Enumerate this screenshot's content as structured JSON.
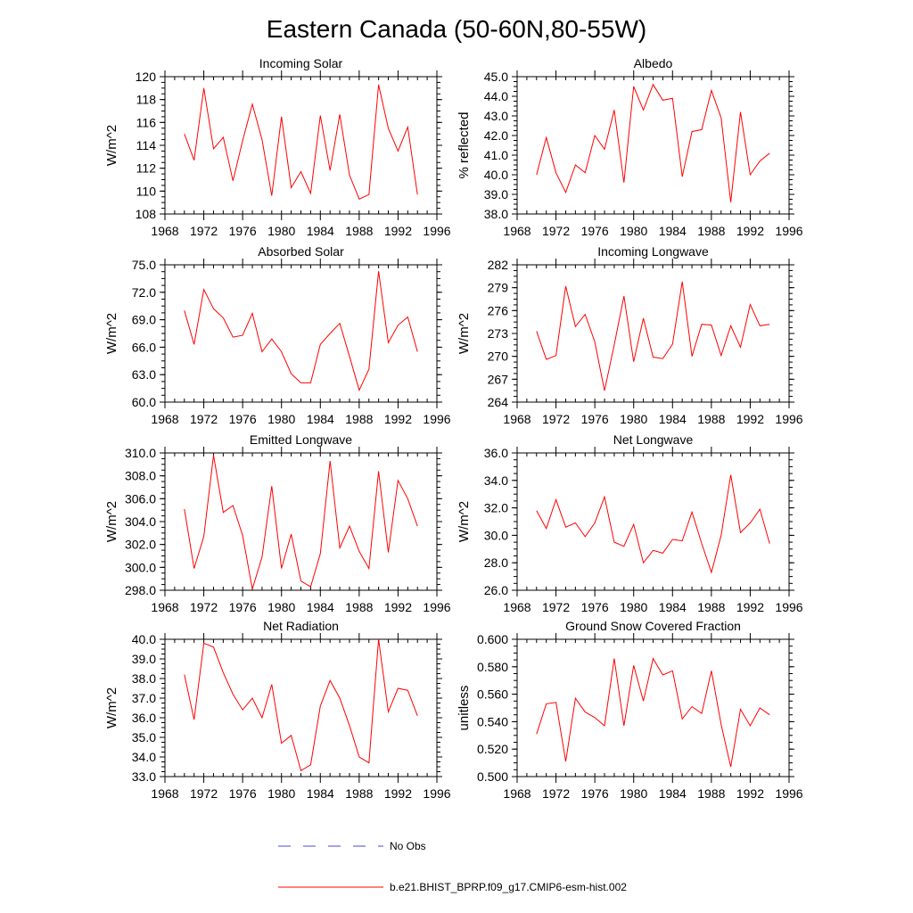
{
  "figure": {
    "title": "Eastern Canada (50-60N,80-55W)",
    "line_color": "#ff0000",
    "noobs_color": "#4a4acc"
  },
  "legend": {
    "entries": [
      {
        "label": "No Obs",
        "style": "dashed",
        "color": "#4a4acc"
      },
      {
        "label": "b.e21.BHIST_BPRP.f09_g17.CMIP6-esm-hist.002",
        "style": "solid",
        "color": "#ff0000"
      }
    ]
  },
  "chart_data": [
    {
      "type": "line",
      "title": "Incoming Solar",
      "ylabel": "W/m^2",
      "xlim": [
        1968,
        1996
      ],
      "ylim": [
        108,
        120
      ],
      "yticks": [
        108,
        110,
        112,
        114,
        116,
        118,
        120
      ],
      "yticklabels": [
        "108",
        "110",
        "112",
        "114",
        "116",
        "118",
        "120"
      ],
      "xticks": [
        1968,
        1972,
        1976,
        1980,
        1984,
        1988,
        1992,
        1996
      ],
      "xticklabels": [
        "1968",
        "1972",
        "1976",
        "1980",
        "1984",
        "1988",
        "1992",
        "1996"
      ],
      "series": [
        {
          "name": "b.e21.BHIST_BPRP.f09_g17.CMIP6-esm-hist.002",
          "x": [
            1970,
            1971,
            1972,
            1973,
            1974,
            1975,
            1976,
            1977,
            1978,
            1979,
            1980,
            1981,
            1982,
            1983,
            1984,
            1985,
            1986,
            1987,
            1988,
            1989,
            1990,
            1991,
            1992,
            1993,
            1994
          ],
          "values": [
            115.0,
            112.7,
            119.0,
            113.7,
            114.7,
            110.9,
            114.4,
            117.6,
            114.5,
            109.6,
            116.5,
            110.3,
            111.7,
            109.8,
            116.6,
            111.8,
            116.7,
            111.4,
            109.3,
            109.7,
            119.3,
            115.5,
            113.5,
            115.6,
            109.7
          ]
        }
      ]
    },
    {
      "type": "line",
      "title": "Albedo",
      "ylabel": "% reflected",
      "xlim": [
        1968,
        1996
      ],
      "ylim": [
        38,
        45
      ],
      "yticks": [
        38,
        39,
        40,
        41,
        42,
        43,
        44,
        45
      ],
      "yticklabels": [
        "38.0",
        "39.0",
        "40.0",
        "41.0",
        "42.0",
        "43.0",
        "44.0",
        "45.0"
      ],
      "xticks": [
        1968,
        1972,
        1976,
        1980,
        1984,
        1988,
        1992,
        1996
      ],
      "xticklabels": [
        "1968",
        "1972",
        "1976",
        "1980",
        "1984",
        "1988",
        "1992",
        "1996"
      ],
      "series": [
        {
          "name": "b.e21.BHIST_BPRP.f09_g17.CMIP6-esm-hist.002",
          "x": [
            1970,
            1971,
            1972,
            1973,
            1974,
            1975,
            1976,
            1977,
            1978,
            1979,
            1980,
            1981,
            1982,
            1983,
            1984,
            1985,
            1986,
            1987,
            1988,
            1989,
            1990,
            1991,
            1992,
            1993,
            1994
          ],
          "values": [
            40.0,
            41.9,
            40.1,
            39.1,
            40.5,
            40.1,
            42.0,
            41.3,
            43.3,
            39.6,
            44.5,
            43.3,
            44.6,
            43.8,
            43.9,
            39.9,
            42.2,
            42.3,
            44.3,
            42.9,
            38.6,
            43.2,
            40.0,
            40.7,
            41.1
          ]
        }
      ]
    },
    {
      "type": "line",
      "title": "Absorbed Solar",
      "ylabel": "W/m^2",
      "xlim": [
        1968,
        1996
      ],
      "ylim": [
        60,
        75
      ],
      "yticks": [
        60,
        63,
        66,
        69,
        72,
        75
      ],
      "yticklabels": [
        "60.0",
        "63.0",
        "66.0",
        "69.0",
        "72.0",
        "75.0"
      ],
      "xticks": [
        1968,
        1972,
        1976,
        1980,
        1984,
        1988,
        1992,
        1996
      ],
      "xticklabels": [
        "1968",
        "1972",
        "1976",
        "1980",
        "1984",
        "1988",
        "1992",
        "1996"
      ],
      "series": [
        {
          "name": "b.e21.BHIST_BPRP.f09_g17.CMIP6-esm-hist.002",
          "x": [
            1970,
            1971,
            1972,
            1973,
            1974,
            1975,
            1976,
            1977,
            1978,
            1979,
            1980,
            1981,
            1982,
            1983,
            1984,
            1985,
            1986,
            1987,
            1988,
            1989,
            1990,
            1991,
            1992,
            1993,
            1994
          ],
          "values": [
            70.0,
            66.3,
            72.3,
            70.2,
            69.2,
            67.1,
            67.3,
            69.7,
            65.5,
            66.9,
            65.5,
            63.1,
            62.1,
            62.1,
            66.3,
            67.5,
            68.6,
            65.0,
            61.3,
            63.6,
            74.3,
            66.5,
            68.4,
            69.3,
            65.5
          ]
        }
      ]
    },
    {
      "type": "line",
      "title": "Incoming Longwave",
      "ylabel": "W/m^2",
      "xlim": [
        1968,
        1996
      ],
      "ylim": [
        264,
        282
      ],
      "yticks": [
        264,
        267,
        270,
        273,
        276,
        279,
        282
      ],
      "yticklabels": [
        "264",
        "267",
        "270",
        "273",
        "276",
        "279",
        "282"
      ],
      "xticks": [
        1968,
        1972,
        1976,
        1980,
        1984,
        1988,
        1992,
        1996
      ],
      "xticklabels": [
        "1968",
        "1972",
        "1976",
        "1980",
        "1984",
        "1988",
        "1992",
        "1996"
      ],
      "series": [
        {
          "name": "b.e21.BHIST_BPRP.f09_g17.CMIP6-esm-hist.002",
          "x": [
            1970,
            1971,
            1972,
            1973,
            1974,
            1975,
            1976,
            1977,
            1978,
            1979,
            1980,
            1981,
            1982,
            1983,
            1984,
            1985,
            1986,
            1987,
            1988,
            1989,
            1990,
            1991,
            1992,
            1993,
            1994
          ],
          "values": [
            273.3,
            269.6,
            270.1,
            279.2,
            273.9,
            275.5,
            271.9,
            265.5,
            271.5,
            277.9,
            269.3,
            275.0,
            269.9,
            269.7,
            271.6,
            279.8,
            270.0,
            274.2,
            274.1,
            270.1,
            274.0,
            271.2,
            276.8,
            274.0,
            274.2
          ]
        }
      ]
    },
    {
      "type": "line",
      "title": "Emitted Longwave",
      "ylabel": "W/m^2",
      "xlim": [
        1968,
        1996
      ],
      "ylim": [
        298,
        310
      ],
      "yticks": [
        298,
        300,
        302,
        304,
        306,
        308,
        310
      ],
      "yticklabels": [
        "298.0",
        "300.0",
        "302.0",
        "304.0",
        "306.0",
        "308.0",
        "310.0"
      ],
      "xticks": [
        1968,
        1972,
        1976,
        1980,
        1984,
        1988,
        1992,
        1996
      ],
      "xticklabels": [
        "1968",
        "1972",
        "1976",
        "1980",
        "1984",
        "1988",
        "1992",
        "1996"
      ],
      "series": [
        {
          "name": "b.e21.BHIST_BPRP.f09_g17.CMIP6-esm-hist.002",
          "x": [
            1970,
            1971,
            1972,
            1973,
            1974,
            1975,
            1976,
            1977,
            1978,
            1979,
            1980,
            1981,
            1982,
            1983,
            1984,
            1985,
            1986,
            1987,
            1988,
            1989,
            1990,
            1991,
            1992,
            1993,
            1994
          ],
          "values": [
            305.1,
            299.9,
            302.7,
            309.8,
            304.8,
            305.4,
            302.8,
            298.1,
            300.9,
            307.1,
            299.9,
            302.9,
            298.8,
            298.3,
            301.2,
            309.3,
            301.7,
            303.6,
            301.4,
            299.9,
            308.4,
            301.3,
            307.6,
            306.0,
            303.6
          ]
        }
      ]
    },
    {
      "type": "line",
      "title": "Net Longwave",
      "ylabel": "W/m^2",
      "xlim": [
        1968,
        1996
      ],
      "ylim": [
        26,
        36
      ],
      "yticks": [
        26,
        28,
        30,
        32,
        34,
        36
      ],
      "yticklabels": [
        "26.0",
        "28.0",
        "30.0",
        "32.0",
        "34.0",
        "36.0"
      ],
      "xticks": [
        1968,
        1972,
        1976,
        1980,
        1984,
        1988,
        1992,
        1996
      ],
      "xticklabels": [
        "1968",
        "1972",
        "1976",
        "1980",
        "1984",
        "1988",
        "1992",
        "1996"
      ],
      "series": [
        {
          "name": "b.e21.BHIST_BPRP.f09_g17.CMIP6-esm-hist.002",
          "x": [
            1970,
            1971,
            1972,
            1973,
            1974,
            1975,
            1976,
            1977,
            1978,
            1979,
            1980,
            1981,
            1982,
            1983,
            1984,
            1985,
            1986,
            1987,
            1988,
            1989,
            1990,
            1991,
            1992,
            1993,
            1994
          ],
          "values": [
            31.8,
            30.5,
            32.6,
            30.6,
            30.9,
            29.9,
            30.9,
            32.8,
            29.5,
            29.2,
            30.8,
            28.0,
            28.9,
            28.7,
            29.7,
            29.6,
            31.7,
            29.4,
            27.3,
            30.0,
            34.4,
            30.2,
            30.9,
            31.9,
            29.4
          ]
        }
      ]
    },
    {
      "type": "line",
      "title": "Net Radiation",
      "ylabel": "W/m^2",
      "xlim": [
        1968,
        1996
      ],
      "ylim": [
        33,
        40
      ],
      "yticks": [
        33,
        34,
        35,
        36,
        37,
        38,
        39,
        40
      ],
      "yticklabels": [
        "33.0",
        "34.0",
        "35.0",
        "36.0",
        "37.0",
        "38.0",
        "39.0",
        "40.0"
      ],
      "xticks": [
        1968,
        1972,
        1976,
        1980,
        1984,
        1988,
        1992,
        1996
      ],
      "xticklabels": [
        "1968",
        "1972",
        "1976",
        "1980",
        "1984",
        "1988",
        "1992",
        "1996"
      ],
      "series": [
        {
          "name": "b.e21.BHIST_BPRP.f09_g17.CMIP6-esm-hist.002",
          "x": [
            1970,
            1971,
            1972,
            1973,
            1974,
            1975,
            1976,
            1977,
            1978,
            1979,
            1980,
            1981,
            1982,
            1983,
            1984,
            1985,
            1986,
            1987,
            1988,
            1989,
            1990,
            1991,
            1992,
            1993,
            1994
          ],
          "values": [
            38.2,
            35.9,
            39.8,
            39.6,
            38.3,
            37.2,
            36.4,
            37.0,
            36.0,
            37.7,
            34.7,
            35.1,
            33.3,
            33.6,
            36.6,
            37.9,
            37.0,
            35.6,
            34.0,
            33.7,
            40.0,
            36.3,
            37.5,
            37.4,
            36.1
          ]
        }
      ]
    },
    {
      "type": "line",
      "title": "Ground Snow Covered Fraction",
      "ylabel": "unitless",
      "xlim": [
        1968,
        1996
      ],
      "ylim": [
        0.5,
        0.6
      ],
      "yticks": [
        0.5,
        0.52,
        0.54,
        0.56,
        0.58,
        0.6
      ],
      "yticklabels": [
        "0.500",
        "0.520",
        "0.540",
        "0.560",
        "0.580",
        "0.600"
      ],
      "xticks": [
        1968,
        1972,
        1976,
        1980,
        1984,
        1988,
        1992,
        1996
      ],
      "xticklabels": [
        "1968",
        "1972",
        "1976",
        "1980",
        "1984",
        "1988",
        "1992",
        "1996"
      ],
      "series": [
        {
          "name": "b.e21.BHIST_BPRP.f09_g17.CMIP6-esm-hist.002",
          "x": [
            1970,
            1971,
            1972,
            1973,
            1974,
            1975,
            1976,
            1977,
            1978,
            1979,
            1980,
            1981,
            1982,
            1983,
            1984,
            1985,
            1986,
            1987,
            1988,
            1989,
            1990,
            1991,
            1992,
            1993,
            1994
          ],
          "values": [
            0.531,
            0.553,
            0.554,
            0.511,
            0.557,
            0.547,
            0.543,
            0.537,
            0.586,
            0.537,
            0.581,
            0.555,
            0.586,
            0.574,
            0.577,
            0.542,
            0.551,
            0.546,
            0.577,
            0.538,
            0.507,
            0.549,
            0.537,
            0.55,
            0.545
          ]
        }
      ]
    }
  ]
}
